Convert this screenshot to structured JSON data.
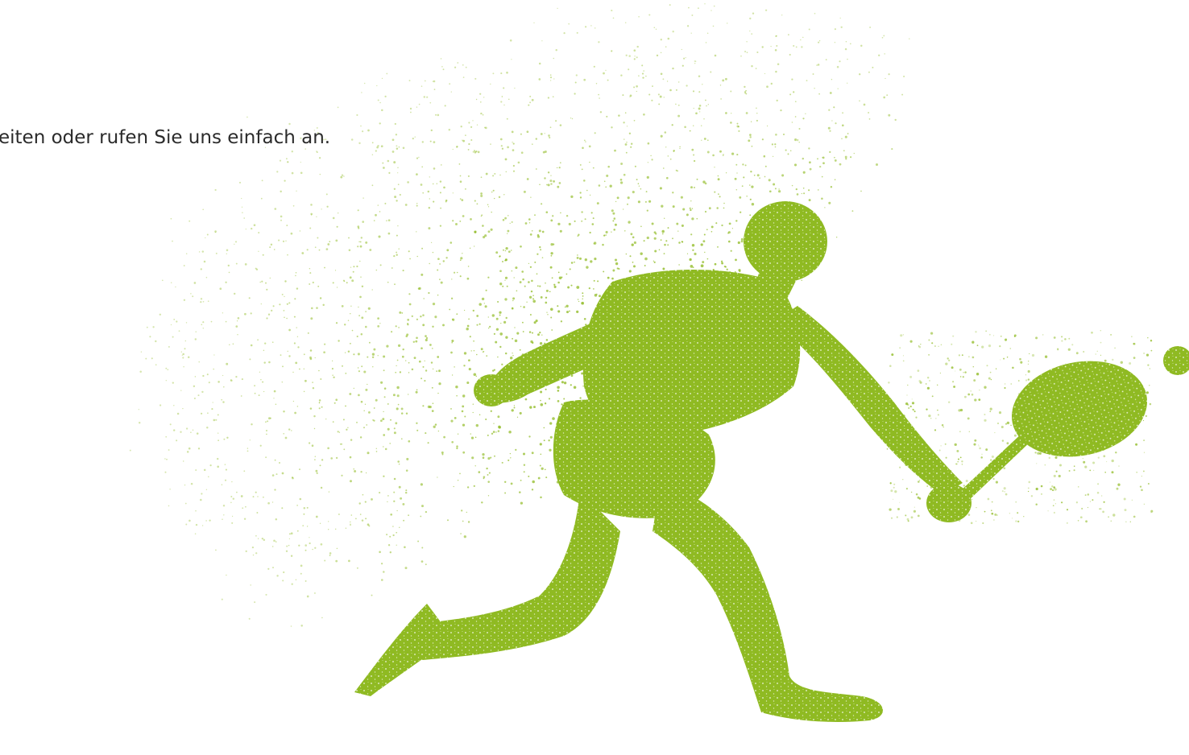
{
  "content": {
    "intro_text": "eiten oder rufen Sie uns einfach an."
  },
  "hero": {
    "icon": "tennis-player-particle-silhouette-icon",
    "color": "#8fba22"
  }
}
